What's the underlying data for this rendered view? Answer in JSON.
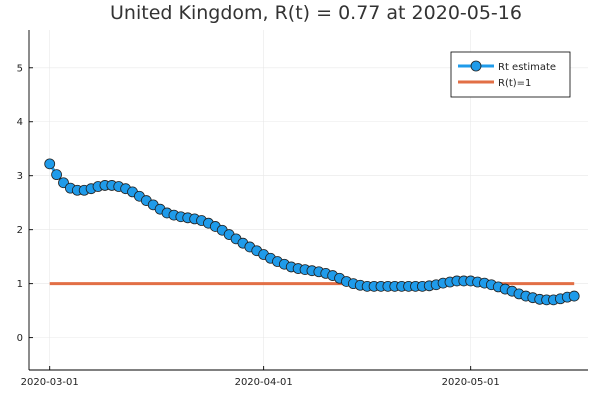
{
  "chart_data": {
    "type": "line",
    "title": "United Kingdom, R(t) = 0.77 at 2020-05-16",
    "xlabel": "",
    "ylabel": "",
    "x_start": "2020-03-01",
    "x_end": "2020-05-16",
    "xlim": [
      "2020-02-27",
      "2020-05-18"
    ],
    "ylim": [
      -0.6,
      5.7
    ],
    "x_ticks": [
      "2020-03-01",
      "2020-04-01",
      "2020-05-01"
    ],
    "y_ticks": [
      0,
      1,
      2,
      3,
      4,
      5
    ],
    "grid": true,
    "legend_position": "top-right",
    "series": [
      {
        "name": "Rt estimate",
        "color": "#1f9bea",
        "marker": "circle",
        "values": [
          3.22,
          3.02,
          2.87,
          2.77,
          2.73,
          2.73,
          2.76,
          2.8,
          2.82,
          2.82,
          2.8,
          2.76,
          2.7,
          2.62,
          2.54,
          2.46,
          2.38,
          2.31,
          2.27,
          2.24,
          2.22,
          2.2,
          2.17,
          2.12,
          2.06,
          1.99,
          1.91,
          1.83,
          1.75,
          1.68,
          1.61,
          1.54,
          1.47,
          1.41,
          1.36,
          1.31,
          1.28,
          1.26,
          1.24,
          1.22,
          1.19,
          1.15,
          1.1,
          1.04,
          1.0,
          0.97,
          0.95,
          0.95,
          0.95,
          0.95,
          0.95,
          0.95,
          0.95,
          0.95,
          0.95,
          0.96,
          0.98,
          1.01,
          1.03,
          1.05,
          1.05,
          1.05,
          1.03,
          1.01,
          0.98,
          0.94,
          0.9,
          0.86,
          0.81,
          0.77,
          0.74,
          0.71,
          0.7,
          0.7,
          0.72,
          0.75,
          0.77
        ]
      },
      {
        "name": "R(t)=1",
        "color": "#e26f46",
        "marker": "none",
        "values": [
          1,
          1
        ]
      }
    ]
  }
}
